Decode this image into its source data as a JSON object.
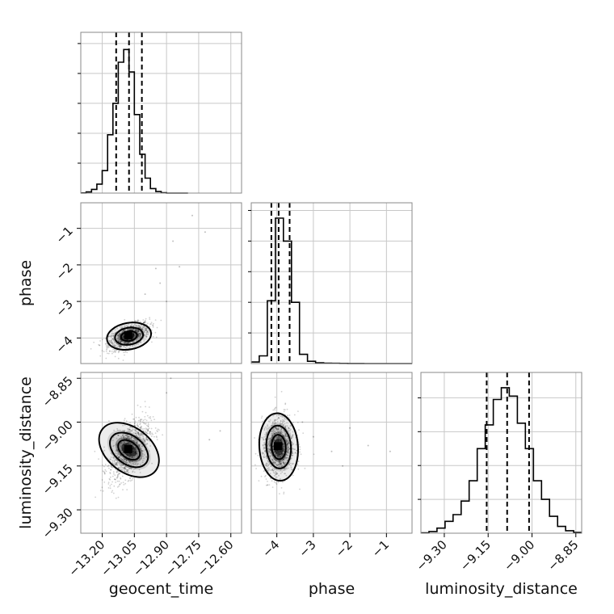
{
  "chart_data": {
    "type": "corner",
    "parameters": [
      {
        "name": "geocent_time",
        "range": [
          -13.3,
          -12.55
        ],
        "ticks": [
          -13.2,
          -13.05,
          -12.9,
          -12.75,
          -12.6
        ],
        "tick_labels": [
          "−13.20",
          "−13.05",
          "−12.90",
          "−12.75",
          "−12.60"
        ],
        "quantiles": [
          -13.135,
          -13.075,
          -13.015
        ],
        "mean": -13.075,
        "sigma": 0.045
      },
      {
        "name": "phase",
        "range": [
          -4.7,
          -0.3
        ],
        "ticks": [
          -4,
          -3,
          -2,
          -1
        ],
        "tick_labels": [
          "−4",
          "−3",
          "−2",
          "−1"
        ],
        "quantiles": [
          -4.15,
          -3.95,
          -3.65
        ],
        "mean": -3.9,
        "sigma": 0.3
      },
      {
        "name": "luminosity_distance",
        "range": [
          -9.38,
          -8.83
        ],
        "ticks": [
          -9.3,
          -9.15,
          -9.0,
          -8.85
        ],
        "tick_labels": [
          "−9.30",
          "−9.15",
          "−9.00",
          "−8.85"
        ],
        "quantiles": [
          -9.155,
          -9.085,
          -9.01
        ],
        "mean": -9.085,
        "sigma": 0.05
      }
    ],
    "histograms": [
      {
        "param": "geocent_time",
        "bin_edges": [
          -13.3,
          -13.275,
          -13.25,
          -13.225,
          -13.2,
          -13.175,
          -13.15,
          -13.125,
          -13.1,
          -13.075,
          -13.05,
          -13.025,
          -13.0,
          -12.975,
          -12.95,
          -12.925,
          -12.9,
          -12.875,
          -12.85,
          -12.825,
          -12.8
        ],
        "counts": [
          0.2,
          1.5,
          5,
          12,
          30,
          78,
          120,
          175,
          192,
          162,
          105,
          52,
          20,
          6,
          2,
          0.5,
          0,
          0,
          0,
          0
        ],
        "ymax": 215
      },
      {
        "param": "phase",
        "bin_edges": [
          -4.7,
          -4.48,
          -4.26,
          -4.04,
          -3.82,
          -3.6,
          -3.38,
          -3.16,
          -2.94,
          -2.72,
          -2.5,
          -2.28,
          -2.06,
          -1.84,
          -1.62,
          -1.4,
          -1.18,
          -0.96,
          -0.74,
          -0.52,
          -0.3
        ],
        "counts": [
          2,
          10,
          82,
          190,
          160,
          80,
          12,
          3,
          1,
          0.5,
          0.3,
          0.2,
          0.1,
          0.1,
          0,
          0,
          0,
          0,
          0,
          0
        ],
        "ymax": 210
      },
      {
        "param": "luminosity_distance",
        "bin_edges": [
          -9.38,
          -9.3525,
          -9.325,
          -9.2975,
          -9.27,
          -9.2425,
          -9.215,
          -9.1875,
          -9.16,
          -9.1325,
          -9.105,
          -9.0775,
          -9.05,
          -9.0225,
          -8.995,
          -8.9675,
          -8.94,
          -8.9125,
          -8.885,
          -8.8575,
          -8.83
        ],
        "counts": [
          0.5,
          2,
          6,
          14,
          22,
          38,
          62,
          100,
          128,
          158,
          172,
          162,
          130,
          100,
          62,
          40,
          20,
          8,
          3,
          1
        ],
        "ymax": 190
      }
    ],
    "pairs": [
      {
        "x": "geocent_time",
        "y": "phase",
        "center": [
          -13.075,
          -3.95
        ],
        "contour_levels": 3,
        "outliers": [
          [
            -12.78,
            -0.65
          ],
          [
            -12.87,
            -1.35
          ],
          [
            -12.72,
            -1.1
          ],
          [
            -12.95,
            -2.1
          ],
          [
            -12.93,
            -2.5
          ],
          [
            -13.0,
            -2.8
          ],
          [
            -12.9,
            -3.0
          ],
          [
            -12.84,
            -2.05
          ]
        ]
      },
      {
        "x": "geocent_time",
        "y": "luminosity_distance",
        "center": [
          -13.075,
          -9.095
        ],
        "contour_levels": 3,
        "outliers": [
          [
            -12.88,
            -8.85
          ],
          [
            -12.7,
            -9.06
          ],
          [
            -12.9,
            -8.9
          ],
          [
            -12.65,
            -9.03
          ]
        ]
      },
      {
        "x": "phase",
        "y": "luminosity_distance",
        "center": [
          -3.95,
          -9.085
        ],
        "contour_levels": 3,
        "outliers": [
          [
            -3.0,
            -9.05
          ],
          [
            -2.5,
            -9.1
          ],
          [
            -2.0,
            -9.02
          ],
          [
            -1.5,
            -9.08
          ],
          [
            -0.9,
            -9.1
          ],
          [
            -3.3,
            -9.0
          ],
          [
            -2.2,
            -9.15
          ]
        ]
      }
    ],
    "title": "",
    "grid": true,
    "legend": "none"
  }
}
